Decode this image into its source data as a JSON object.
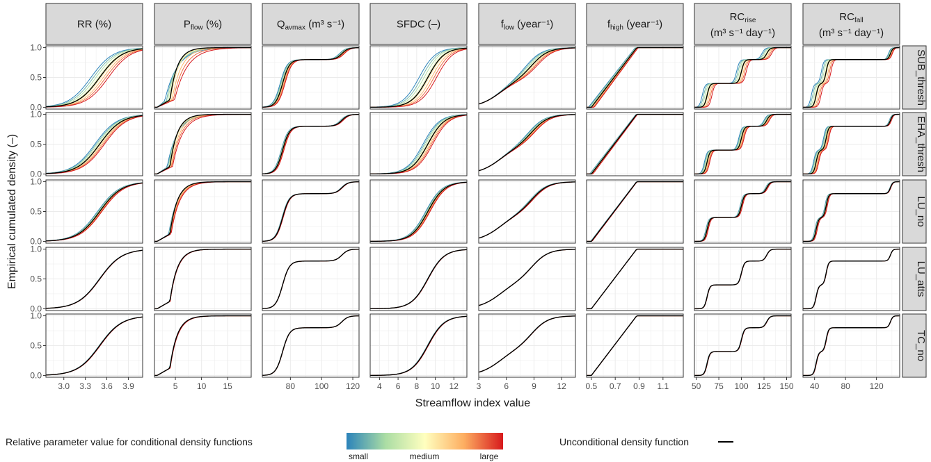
{
  "chart_data": {
    "type": "line",
    "xlabel": "Streamflow index value",
    "ylabel": "Empirical cumulated density (–)",
    "grid": true,
    "columns": [
      {
        "id": "RR",
        "label_main": "RR (%)",
        "label_sub": "",
        "label_tail": "",
        "label_line2": "",
        "ticks": [
          3.0,
          3.3,
          3.6,
          3.9
        ],
        "tick_labels": [
          "3.0",
          "3.3",
          "3.6",
          "3.9"
        ],
        "xlim": [
          2.75,
          4.1
        ],
        "shape": {
          "ctr": 3.5,
          "sp": 0.28,
          "kind": "logistic"
        }
      },
      {
        "id": "Pflow",
        "label_main": "P",
        "label_sub": "flow",
        "label_tail": " (%)",
        "label_line2": "",
        "ticks": [
          5,
          10,
          15
        ],
        "tick_labels": [
          "5",
          "10",
          "15"
        ],
        "xlim": [
          1.0,
          19.5
        ],
        "shape": {
          "ctr": 5,
          "sp": 1.5,
          "kind": "sharp"
        }
      },
      {
        "id": "Qavmax",
        "label_main": "Q",
        "label_sub": "avmax",
        "label_tail": " (m³ s⁻¹)",
        "label_line2": "",
        "ticks": [
          80,
          100,
          120
        ],
        "tick_labels": [
          "80",
          "100",
          "120"
        ],
        "xlim": [
          62,
          124
        ],
        "shape": {
          "kind": "step2",
          "a": 75,
          "b": 113,
          "plateau": 0.8
        }
      },
      {
        "id": "SFDC",
        "label_main": "SFDC (–)",
        "label_sub": "",
        "label_tail": "",
        "label_line2": "",
        "ticks": [
          4,
          6,
          8,
          10,
          12
        ],
        "tick_labels": [
          "4",
          "6",
          "8",
          "10",
          "12"
        ],
        "xlim": [
          3.0,
          13.4
        ],
        "shape": {
          "ctr": 9.2,
          "sp": 1.6,
          "kind": "logistic"
        }
      },
      {
        "id": "flow",
        "label_main": "f",
        "label_sub": "low",
        "label_tail": " (year⁻¹)",
        "label_line2": "",
        "ticks": [
          3,
          6,
          9,
          12
        ],
        "tick_labels": [
          "3",
          "6",
          "9",
          "12"
        ],
        "xlim": [
          3.0,
          13.5
        ],
        "shape": {
          "kind": "sshape",
          "ctr": 8.8
        }
      },
      {
        "id": "fhigh",
        "label_main": "f",
        "label_sub": "high",
        "label_tail": " (year⁻¹)",
        "label_line2": "",
        "ticks": [
          0.5,
          0.7,
          0.9,
          1.1
        ],
        "tick_labels": [
          "0.5",
          "0.7",
          "0.9",
          "1.1"
        ],
        "xlim": [
          0.46,
          1.27
        ],
        "shape": {
          "kind": "linear",
          "a": 0.5,
          "b": 0.88
        }
      },
      {
        "id": "RCrise",
        "label_main": "RC",
        "label_sub": "rise",
        "label_tail": "",
        "label_line2": "(m³ s⁻¹ day⁻¹)",
        "ticks": [
          50,
          75,
          100,
          125,
          150
        ],
        "tick_labels": [
          "50",
          "75",
          "100",
          "125",
          "150"
        ],
        "xlim": [
          48,
          155
        ],
        "shape": {
          "kind": "step3",
          "a": 62,
          "b": 100,
          "c": 128
        }
      },
      {
        "id": "RCfall",
        "label_main": "RC",
        "label_sub": "fall",
        "label_tail": "",
        "label_line2": "(m³ s⁻¹ day⁻¹)",
        "ticks": [
          40,
          80,
          120
        ],
        "tick_labels": [
          "40",
          "80",
          "120"
        ],
        "xlim": [
          25,
          150
        ],
        "shape": {
          "kind": "step3b",
          "a": 42,
          "b": 55,
          "c": 138
        }
      }
    ],
    "rows": [
      {
        "id": "SUB_thresh",
        "label": "SUB_thresh"
      },
      {
        "id": "EHA_thresh",
        "label": "EHA_thresh"
      },
      {
        "id": "LU_no",
        "label": "LU_no"
      },
      {
        "id": "LU_atts",
        "label": "LU_atts"
      },
      {
        "id": "TC_no",
        "label": "TC_no"
      }
    ],
    "yticks": [
      0.0,
      0.5,
      1.0
    ],
    "ytick_labels": [
      "0.0",
      "0.5",
      "1.0"
    ],
    "ylim": [
      -0.03,
      1.03
    ],
    "row_spread": [
      1.0,
      0.55,
      0.25,
      0.04,
      0.06
    ],
    "colors": {
      "small": "#2b83ba",
      "mid_low": "#abdda4",
      "medium": "#ffffbf",
      "mid_high": "#fdae61",
      "large": "#d7191c",
      "unconditional": "#000000"
    },
    "legend": {
      "conditional_title": "Relative parameter value for conditional density functions",
      "small": "small",
      "medium": "medium",
      "large": "large",
      "unconditional_title": "Unconditional density function"
    }
  }
}
